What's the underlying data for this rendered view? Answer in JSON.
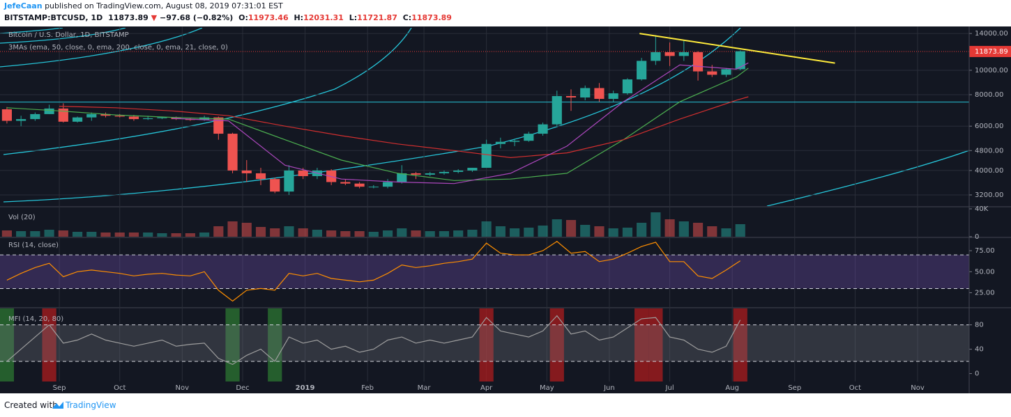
{
  "header": {
    "author": "JefeCaan",
    "published": "published on TradingView.com, August 08, 2019 07:31:01 EST",
    "symbol": "BITSTAMP:BTCUSD, 1D",
    "last": "11873.89",
    "arrow": "▼",
    "change": "−97.68 (−0.82%)",
    "open_label": "O:",
    "open": "11973.46",
    "high_label": "H:",
    "high": "12031.31",
    "low_label": "L:",
    "low": "11721.87",
    "close_label": "C:",
    "close": "11873.89"
  },
  "chart_data": [
    {
      "type": "candlestick",
      "title": "Bitcoin / U.S. Dollar, 1D, BITSTAMP",
      "subtitle": "3MAs (ema, 50, close, 0, ema, 200, close, 0, ema, 21, close, 0)",
      "log_scale": true,
      "grid": true,
      "up_color": "#26a69a",
      "down_color": "#ef5350",
      "xlim": [
        -27.7,
        451.6
      ],
      "xticks": [
        {
          "value": 0,
          "label": "Sep"
        },
        {
          "value": 30,
          "label": "Oct"
        },
        {
          "value": 61,
          "label": "Nov"
        },
        {
          "value": 91,
          "label": "Dec"
        },
        {
          "value": 122,
          "label": "2019"
        },
        {
          "value": 153,
          "label": "Feb"
        },
        {
          "value": 181,
          "label": "Mar"
        },
        {
          "value": 212,
          "label": "Apr"
        },
        {
          "value": 242,
          "label": "May"
        },
        {
          "value": 273,
          "label": "Jun"
        },
        {
          "value": 303,
          "label": "Jul"
        },
        {
          "value": 334,
          "label": "Aug"
        },
        {
          "value": 365,
          "label": "Sep"
        },
        {
          "value": 395,
          "label": "Oct"
        },
        {
          "value": 426,
          "label": "Nov"
        }
      ],
      "ylim": [
        2890,
        14740
      ],
      "yticks": [
        {
          "value": 14000,
          "label": "14000.00"
        },
        {
          "value": 10000,
          "label": "10000.00"
        },
        {
          "value": 8000,
          "label": "8000.00"
        },
        {
          "value": 6000,
          "label": "6000.00"
        },
        {
          "value": 4800,
          "label": "4800.00"
        },
        {
          "value": 4000,
          "label": "4000.00"
        },
        {
          "value": 3200,
          "label": "3200.00"
        }
      ],
      "x": [
        -26,
        -19,
        -12,
        -5,
        2,
        9,
        16,
        23,
        30,
        37,
        44,
        51,
        58,
        65,
        72,
        79,
        86,
        93,
        100,
        107,
        114,
        121,
        128,
        135,
        142,
        149,
        156,
        163,
        170,
        177,
        184,
        191,
        198,
        205,
        212,
        219,
        226,
        233,
        240,
        247,
        254,
        261,
        268,
        275,
        282,
        289,
        296,
        303,
        310,
        317,
        324,
        331,
        338
      ],
      "open": [
        7000,
        6300,
        6400,
        6700,
        7050,
        6250,
        6500,
        6700,
        6600,
        6550,
        6400,
        6450,
        6500,
        6400,
        6350,
        6500,
        5600,
        4000,
        3900,
        3700,
        3300,
        4000,
        3800,
        4000,
        3600,
        3550,
        3450,
        3450,
        3600,
        3900,
        3850,
        3900,
        3950,
        4000,
        4100,
        5100,
        5200,
        5250,
        5600,
        6100,
        7900,
        7800,
        8500,
        7700,
        8100,
        9200,
        10900,
        11800,
        11400,
        11800,
        9900,
        9600,
        10100
      ],
      "high": [
        7150,
        6600,
        6800,
        7300,
        7400,
        6550,
        6800,
        6800,
        6700,
        6650,
        6600,
        6550,
        6550,
        6450,
        6600,
        6550,
        5650,
        4400,
        4100,
        3750,
        4200,
        4100,
        4100,
        4050,
        3700,
        3600,
        3500,
        3700,
        4200,
        3950,
        3950,
        4000,
        4050,
        4100,
        5300,
        5400,
        5350,
        5700,
        6200,
        8300,
        8400,
        8700,
        8900,
        8300,
        9300,
        11200,
        13800,
        12900,
        13100,
        11900,
        10500,
        10200,
        12000
      ],
      "low": [
        6150,
        6000,
        6300,
        6700,
        6200,
        6200,
        6300,
        6500,
        6500,
        6300,
        6350,
        6400,
        6350,
        6300,
        6300,
        5300,
        3900,
        3600,
        3500,
        3250,
        3200,
        3700,
        3700,
        3500,
        3500,
        3400,
        3400,
        3400,
        3550,
        3700,
        3800,
        3850,
        3900,
        3950,
        4100,
        4900,
        5000,
        5200,
        5500,
        6000,
        6900,
        7600,
        7500,
        7500,
        8000,
        9100,
        10500,
        10400,
        10900,
        9100,
        9400,
        9400,
        10000
      ],
      "close": [
        6300,
        6400,
        6700,
        7050,
        6250,
        6500,
        6700,
        6600,
        6550,
        6400,
        6450,
        6500,
        6400,
        6350,
        6500,
        5600,
        4000,
        3900,
        3700,
        3300,
        4000,
        3800,
        4000,
        3600,
        3550,
        3450,
        3450,
        3600,
        3900,
        3850,
        3900,
        3950,
        4000,
        4100,
        5100,
        5200,
        5250,
        5600,
        6100,
        7900,
        7800,
        8500,
        7700,
        8100,
        9200,
        10900,
        11800,
        11400,
        11800,
        9900,
        9600,
        10100,
        11900
      ],
      "series": [
        {
          "color": "#4caf50",
          "x": [
            -26,
            0,
            28,
            56,
            84,
            112,
            140,
            168,
            196,
            224,
            252,
            280,
            308,
            336,
            342
          ],
          "values": [
            7100,
            6900,
            6650,
            6500,
            6400,
            5300,
            4400,
            3900,
            3650,
            3700,
            3900,
            5300,
            7500,
            9400,
            10200
          ]
        },
        {
          "color": "#d32f2f",
          "x": [
            0,
            28,
            56,
            84,
            112,
            140,
            168,
            196,
            224,
            252,
            280,
            308,
            336,
            342
          ],
          "values": [
            7200,
            7100,
            6900,
            6600,
            6000,
            5500,
            5100,
            4800,
            4500,
            4700,
            5300,
            6400,
            7600,
            7850
          ]
        },
        {
          "color": "#ab47bc",
          "x": [
            56,
            84,
            112,
            140,
            168,
            196,
            224,
            252,
            280,
            308,
            336,
            342
          ],
          "values": [
            6450,
            6300,
            4200,
            3700,
            3600,
            3550,
            3900,
            5000,
            7500,
            10500,
            10100,
            10700
          ]
        }
      ],
      "trendline": {
        "color": "#ffeb3b",
        "x": [
          288,
          385
        ],
        "values": [
          14000,
          10680
        ]
      },
      "level": {
        "color": "#26c6da",
        "value": 7480
      },
      "price_line": {
        "color": "#e53935",
        "value": 11873.89,
        "label": "11873.89"
      }
    },
    {
      "type": "bar",
      "title": "Vol (20)",
      "ylim": [
        0,
        42000
      ],
      "yticks": [
        {
          "value": 40000,
          "label": "40K"
        },
        0
      ],
      "values": [
        9000,
        8000,
        8000,
        10000,
        9000,
        7000,
        7000,
        6000,
        6000,
        6000,
        6000,
        5000,
        5000,
        5000,
        6000,
        15000,
        22000,
        20000,
        14000,
        12000,
        15000,
        12000,
        10000,
        9000,
        8000,
        8000,
        7000,
        9000,
        12000,
        9000,
        8000,
        8000,
        9000,
        10000,
        22000,
        15000,
        12000,
        13000,
        16000,
        25000,
        24000,
        17000,
        15000,
        12000,
        13000,
        20000,
        35000,
        25000,
        22000,
        20000,
        15000,
        12000,
        18000
      ]
    },
    {
      "type": "line",
      "title": "RSI (14, close)",
      "color": "#ff8f00",
      "band": [
        30,
        70
      ],
      "band_color": "#7e57c2",
      "ylim": [
        8,
        90
      ],
      "yticks": [
        {
          "value": 75,
          "label": "75.00"
        },
        {
          "value": 50,
          "label": "50.00"
        },
        {
          "value": 25,
          "label": "25.00"
        }
      ],
      "values": [
        40,
        48,
        55,
        60,
        44,
        50,
        52,
        50,
        48,
        45,
        47,
        48,
        46,
        45,
        50,
        28,
        15,
        28,
        30,
        28,
        48,
        45,
        48,
        42,
        40,
        38,
        40,
        48,
        58,
        55,
        57,
        60,
        62,
        65,
        84,
        72,
        70,
        70,
        75,
        86,
        72,
        74,
        62,
        65,
        72,
        80,
        85,
        62,
        62,
        45,
        42,
        52,
        63
      ]
    },
    {
      "type": "line",
      "title": "MFI (14, 20, 80)",
      "color": "#9e9e9e",
      "band": [
        20,
        80
      ],
      "band_color": "#787b86",
      "highlight": true,
      "low_color": "#2e7d32",
      "high_color": "#b71c1c",
      "ylim": [
        -13,
        107
      ],
      "yticks": [
        80,
        40,
        0
      ],
      "values": [
        20,
        40,
        60,
        80,
        50,
        55,
        65,
        55,
        50,
        45,
        50,
        55,
        45,
        48,
        50,
        25,
        15,
        30,
        40,
        20,
        60,
        50,
        55,
        40,
        45,
        35,
        40,
        55,
        60,
        50,
        55,
        50,
        55,
        60,
        92,
        70,
        65,
        60,
        70,
        95,
        65,
        70,
        55,
        60,
        75,
        90,
        92,
        60,
        55,
        40,
        35,
        45,
        88
      ]
    }
  ],
  "footer": {
    "created": "Created with",
    "brand": "TradingView"
  }
}
